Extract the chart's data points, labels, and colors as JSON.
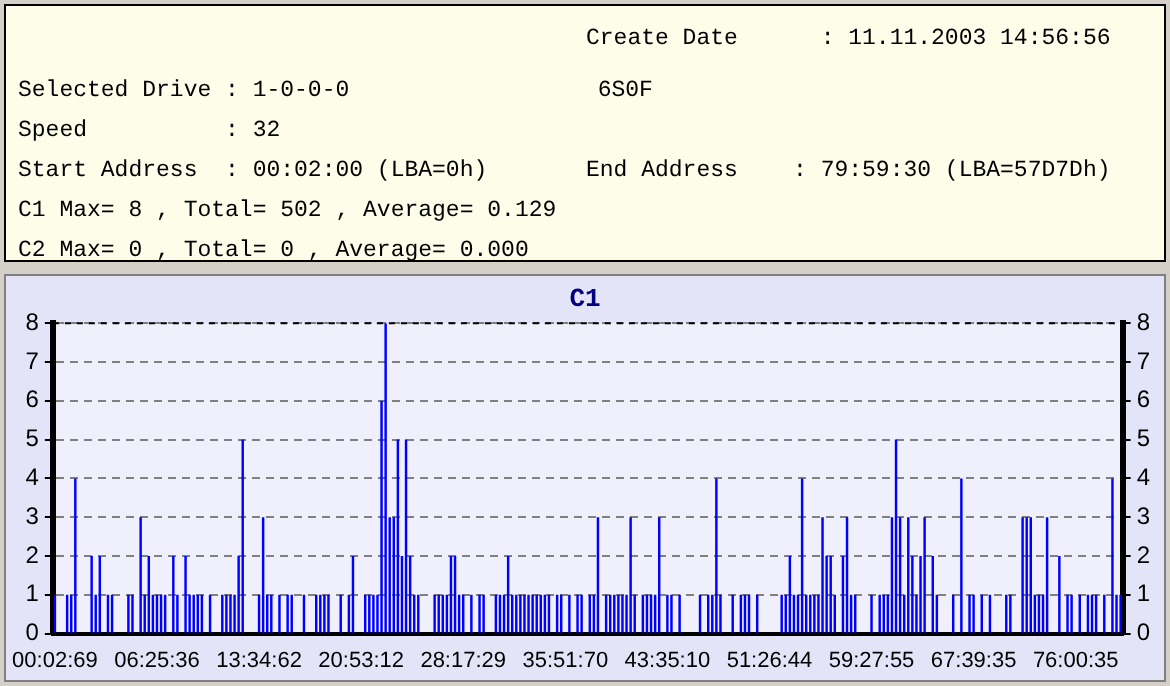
{
  "chart_data": {
    "type": "bar",
    "title": "C1",
    "annotations": [
      "Create Date      : 11.11.2003 14:56:56",
      "Selected Drive : 1-0-0-0                  6S0F",
      "Speed          : 32",
      "Start Address  : 00:02:00 (LBA=0h)",
      "End Address    : 79:59:30 (LBA=57D7Dh)",
      "C1 Max= 8 , Total= 502 , Average= 0.129",
      "C2 Max= 0 , Total= 0 , Average= 0.000"
    ],
    "categories": [
      "00:02:69",
      null,
      null,
      null,
      null,
      null,
      null,
      null,
      null,
      null,
      null,
      null,
      null,
      null,
      null,
      null,
      null,
      null,
      null,
      null,
      null,
      null,
      null,
      null,
      null,
      "06:25:36",
      null,
      null,
      null,
      null,
      null,
      null,
      null,
      null,
      null,
      null,
      null,
      null,
      null,
      null,
      null,
      null,
      null,
      null,
      null,
      null,
      null,
      null,
      null,
      null,
      "13:34:62",
      null,
      null,
      null,
      null,
      null,
      null,
      null,
      null,
      null,
      null,
      null,
      null,
      null,
      null,
      null,
      null,
      null,
      null,
      null,
      null,
      null,
      null,
      null,
      null,
      "20:53:12",
      null,
      null,
      null,
      null,
      null,
      null,
      null,
      null,
      null,
      null,
      null,
      null,
      null,
      null,
      null,
      null,
      null,
      null,
      null,
      null,
      null,
      null,
      null,
      null,
      "28:17:29",
      null,
      null,
      null,
      null,
      null,
      null,
      null,
      null,
      null,
      null,
      null,
      null,
      null,
      null,
      null,
      null,
      null,
      null,
      null,
      null,
      null,
      null,
      null,
      null,
      "35:51:70",
      null,
      null,
      null,
      null,
      null,
      null,
      null,
      null,
      null,
      null,
      null,
      null,
      null,
      null,
      null,
      null,
      null,
      null,
      null,
      null,
      null,
      null,
      null,
      null,
      "43:35:10",
      null,
      null,
      null,
      null,
      null,
      null,
      null,
      null,
      null,
      null,
      null,
      null,
      null,
      null,
      null,
      null,
      null,
      null,
      null,
      null,
      null,
      null,
      null,
      null,
      "51:26:44",
      null,
      null,
      null,
      null,
      null,
      null,
      null,
      null,
      null,
      null,
      null,
      null,
      null,
      null,
      null,
      null,
      null,
      null,
      null,
      null,
      null,
      null,
      null,
      null,
      "59:27:55",
      null,
      null,
      null,
      null,
      null,
      null,
      null,
      null,
      null,
      null,
      null,
      null,
      null,
      null,
      null,
      null,
      null,
      null,
      null,
      null,
      null,
      null,
      null,
      null,
      "67:39:35",
      null,
      null,
      null,
      null,
      null,
      null,
      null,
      null,
      null,
      null,
      null,
      null,
      null,
      null,
      null,
      null,
      null,
      null,
      null,
      null,
      null,
      null,
      null,
      null,
      "76:00:35",
      null,
      null,
      null,
      null,
      null,
      null,
      null,
      null,
      null,
      null,
      null
    ],
    "values": [
      1,
      0,
      0,
      1,
      1,
      4,
      0,
      0,
      0,
      2,
      1,
      2,
      0,
      1,
      1,
      0,
      0,
      0,
      1,
      1,
      0,
      3,
      1,
      2,
      1,
      1,
      1,
      1,
      0,
      2,
      1,
      0,
      2,
      1,
      1,
      1,
      1,
      0,
      1,
      0,
      0,
      1,
      1,
      1,
      1,
      2,
      5,
      0,
      0,
      0,
      1,
      3,
      1,
      1,
      0,
      1,
      0,
      1,
      1,
      0,
      0,
      1,
      0,
      0,
      1,
      1,
      1,
      1,
      0,
      0,
      1,
      0,
      1,
      2,
      0,
      0,
      1,
      1,
      1,
      1,
      6,
      8,
      3,
      3,
      5,
      2,
      5,
      2,
      1,
      1,
      0,
      0,
      0,
      1,
      1,
      1,
      1,
      2,
      2,
      1,
      1,
      0,
      1,
      0,
      1,
      1,
      0,
      0,
      1,
      1,
      1,
      2,
      1,
      1,
      1,
      1,
      1,
      1,
      1,
      1,
      1,
      1,
      0,
      1,
      1,
      0,
      1,
      0,
      1,
      1,
      0,
      1,
      1,
      3,
      0,
      1,
      1,
      1,
      1,
      1,
      1,
      3,
      1,
      0,
      1,
      1,
      1,
      1,
      3,
      0,
      1,
      1,
      0,
      1,
      0,
      0,
      0,
      0,
      1,
      0,
      1,
      1,
      4,
      1,
      0,
      0,
      1,
      0,
      1,
      1,
      1,
      0,
      1,
      0,
      0,
      0,
      0,
      0,
      1,
      1,
      2,
      1,
      1,
      4,
      1,
      1,
      1,
      1,
      3,
      2,
      2,
      1,
      0,
      2,
      3,
      1,
      1,
      0,
      0,
      0,
      1,
      0,
      1,
      1,
      1,
      3,
      5,
      3,
      1,
      3,
      2,
      1,
      2,
      3,
      0,
      2,
      1,
      0,
      0,
      0,
      1,
      0,
      4,
      0,
      1,
      1,
      0,
      1,
      0,
      1,
      0,
      0,
      0,
      1,
      1,
      0,
      0,
      3,
      3,
      3,
      1,
      1,
      1,
      3,
      0,
      0,
      2,
      0,
      1,
      1,
      0,
      1,
      0,
      1,
      1,
      1,
      0,
      1,
      0,
      4,
      1,
      1
    ],
    "color": "#0000ff",
    "ylim": [
      0,
      8
    ],
    "yticks": [
      0,
      1,
      2,
      3,
      4,
      5,
      6,
      7,
      8
    ],
    "y2lim": [
      0,
      8
    ],
    "y2ticks": [
      0,
      1,
      2,
      3,
      4,
      5,
      6,
      7,
      8
    ],
    "grid": "y",
    "legend": false
  }
}
